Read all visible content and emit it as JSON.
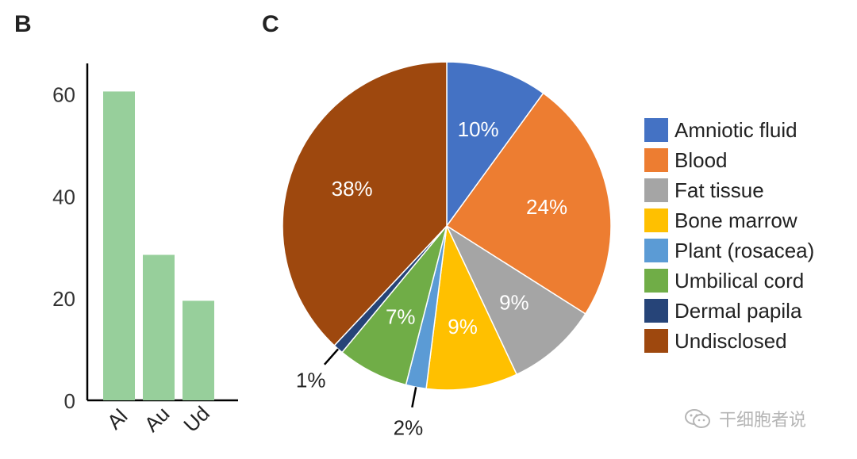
{
  "panels": {
    "b": "B",
    "c": "C"
  },
  "chart_data": [
    {
      "type": "bar",
      "categories": [
        "Al",
        "Au",
        "Ud"
      ],
      "values": [
        60.5,
        28.5,
        19.5
      ],
      "ylim": [
        0,
        66
      ],
      "yticks": [
        0,
        20,
        40,
        60
      ],
      "color": "#97cf9b"
    },
    {
      "type": "pie",
      "labels": [
        "Amniotic fluid",
        "Blood",
        "Fat tissue",
        "Bone marrow",
        "Plant (rosacea)",
        "Umbilical cord",
        "Dermal papila",
        "Undisclosed"
      ],
      "values": [
        10,
        24,
        9,
        9,
        2,
        7,
        1,
        38
      ],
      "value_labels": [
        "10%",
        "24%",
        "9%",
        "9%",
        "2%",
        "7%",
        "1%",
        "38%"
      ],
      "colors": [
        "#4472c4",
        "#ed7d31",
        "#a5a5a5",
        "#ffc000",
        "#5b9bd5",
        "#70ad47",
        "#264478",
        "#9e480e"
      ],
      "start": "top, clockwise"
    }
  ],
  "watermark": "干细胞者说"
}
